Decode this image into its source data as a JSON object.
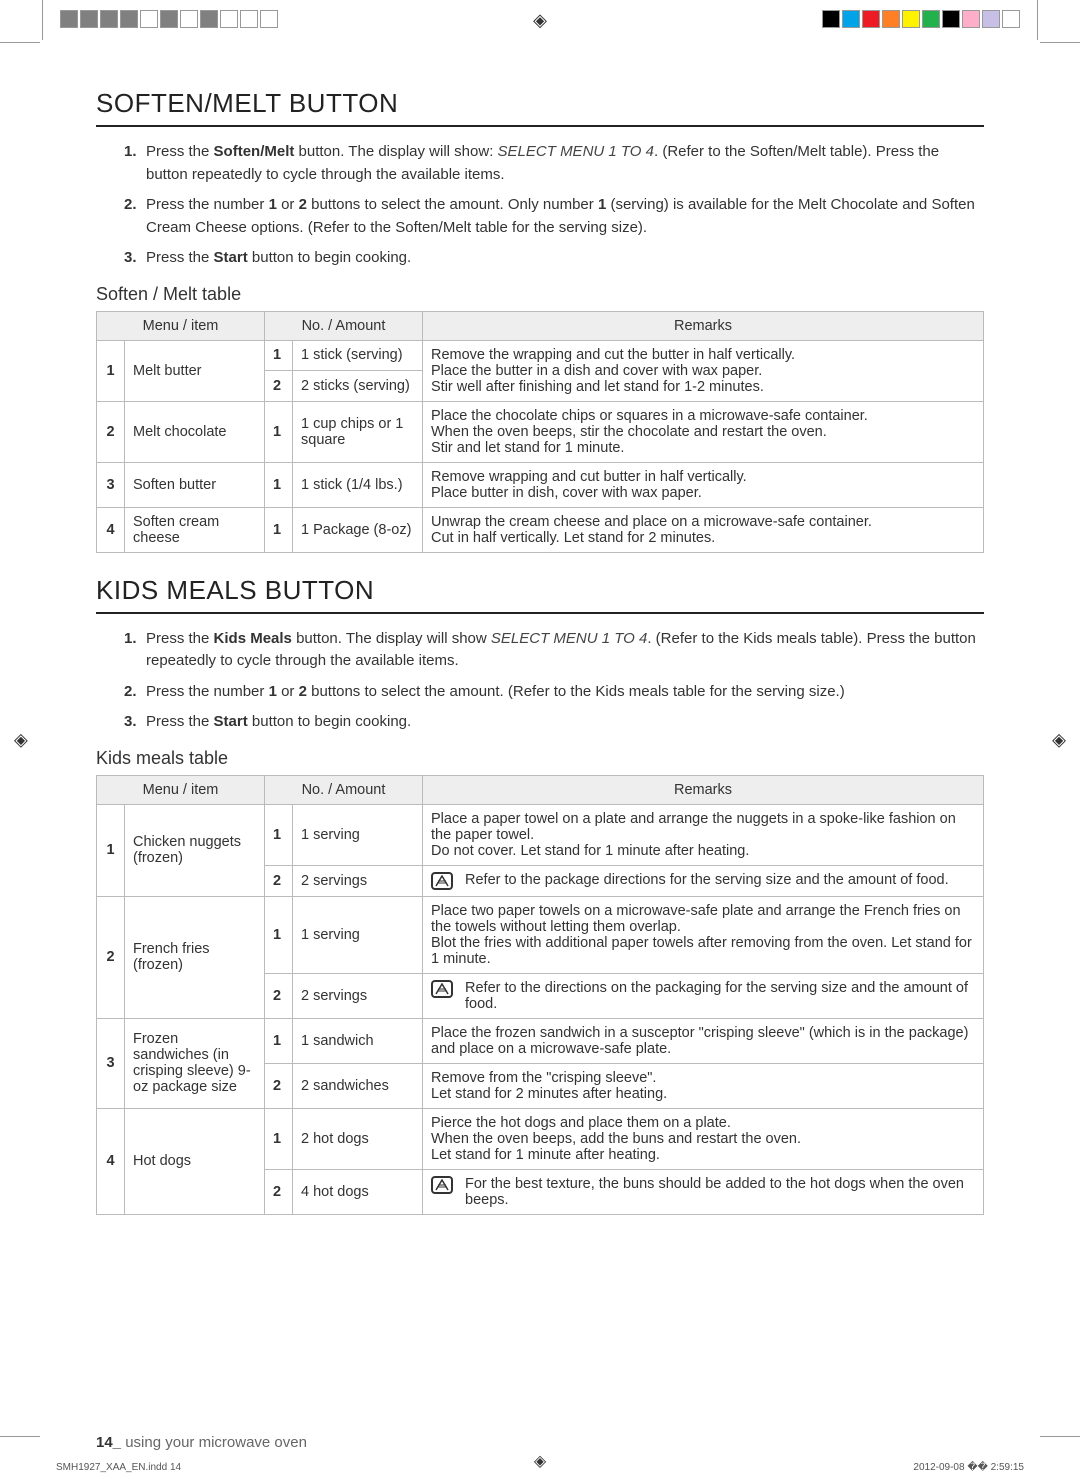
{
  "printbar": {
    "left_colors": [
      "#808080",
      "#808080",
      "#808080",
      "#808080",
      "#ffffff",
      "#808080",
      "#ffffff",
      "#808080",
      "#ffffff",
      "#ffffff",
      "#ffffff"
    ],
    "right_colors": [
      "#000000",
      "#00a2e8",
      "#ed1c24",
      "#ff7f27",
      "#fff200",
      "#22b14c",
      "#000000",
      "#ffaec9",
      "#c8bfe7",
      "#ffffff"
    ]
  },
  "section1": {
    "title": "SOFTEN/MELT BUTTON",
    "steps": [
      {
        "n": "1.",
        "pre": "Press the ",
        "b": "Soften/Melt",
        "post": " button. The display will show: ",
        "i": "SELECT MENU 1 TO 4",
        "tail": ". (Refer to the Soften/Melt table). Press the button repeatedly to cycle through the available items."
      },
      {
        "n": "2.",
        "text": "Press the number 1 or 2 buttons to select the amount. Only number 1 (serving) is available for the Melt Chocolate and Soften Cream Cheese options. (Refer to the Soften/Melt table for the serving size)."
      },
      {
        "n": "3.",
        "pre": "Press the ",
        "b": "Start",
        "post": " button to begin cooking."
      }
    ],
    "table_title": "Soften / Melt table",
    "headers": {
      "menu": "Menu / item",
      "amount": "No. / Amount",
      "remarks": "Remarks"
    },
    "rows": [
      {
        "idx": "1",
        "item": "Melt butter",
        "subs": [
          {
            "no": "1",
            "amt": "1 stick (serving)"
          },
          {
            "no": "2",
            "amt": "2 sticks (serving)"
          }
        ],
        "remarks": "Remove the wrapping and cut the butter in half vertically.\nPlace the butter in a dish and cover with wax paper.\nStir well after finishing and let stand for 1-2 minutes."
      },
      {
        "idx": "2",
        "item": "Melt chocolate",
        "subs": [
          {
            "no": "1",
            "amt": "1 cup chips or 1 square"
          }
        ],
        "remarks": "Place the chocolate chips or squares in a microwave-safe container.\nWhen the oven beeps, stir the chocolate and restart the oven.\nStir and let stand for 1 minute."
      },
      {
        "idx": "3",
        "item": "Soften butter",
        "subs": [
          {
            "no": "1",
            "amt": "1 stick (1/4 lbs.)"
          }
        ],
        "remarks": "Remove wrapping and cut butter in half vertically.\nPlace butter in dish, cover with wax paper."
      },
      {
        "idx": "4",
        "item": "Soften cream cheese",
        "subs": [
          {
            "no": "1",
            "amt": "1 Package (8-oz)"
          }
        ],
        "remarks": "Unwrap the cream cheese and place on a microwave-safe container.\nCut in half vertically. Let stand for 2 minutes."
      }
    ]
  },
  "section2": {
    "title": "KIDS MEALS BUTTON",
    "steps": [
      {
        "n": "1.",
        "pre": "Press the ",
        "b": "Kids Meals",
        "post": " button. The display will show ",
        "i": "SELECT MENU 1 TO 4",
        "tail": ". (Refer to the Kids meals table). Press the button repeatedly to cycle through the available items."
      },
      {
        "n": "2.",
        "text": "Press the number 1 or 2 buttons to select the amount. (Refer to the Kids meals table for the serving size.)"
      },
      {
        "n": "3.",
        "pre": "Press the ",
        "b": "Start",
        "post": " button to begin cooking."
      }
    ],
    "table_title": "Kids meals table",
    "headers": {
      "menu": "Menu / item",
      "amount": "No. / Amount",
      "remarks": "Remarks"
    },
    "rows": [
      {
        "idx": "1",
        "item": "Chicken nuggets (frozen)",
        "sub1": {
          "no": "1",
          "amt": "1 serving",
          "rem": "Place a paper towel on a plate and arrange the nuggets in a spoke-like fashion on the paper towel.\nDo not cover. Let stand for 1 minute after heating."
        },
        "sub2": {
          "no": "2",
          "amt": "2 servings",
          "note": "Refer to the package directions for the serving size and the amount of food."
        }
      },
      {
        "idx": "2",
        "item": "French fries (frozen)",
        "sub1": {
          "no": "1",
          "amt": "1 serving",
          "rem": "Place two paper towels on a microwave-safe plate and arrange the French fries on the towels without letting them overlap.\nBlot the fries with additional paper towels after removing from the oven. Let stand for 1 minute."
        },
        "sub2": {
          "no": "2",
          "amt": "2 servings",
          "note": "Refer to the directions on the packaging for the serving size and the amount of food."
        }
      },
      {
        "idx": "3",
        "item": "Frozen sandwiches (in crisping sleeve) 9-oz package size",
        "sub1": {
          "no": "1",
          "amt": "1 sandwich",
          "rem": "Place the frozen sandwich in a susceptor \"crisping sleeve\" (which is in the package) and place on a microwave-safe plate."
        },
        "sub2": {
          "no": "2",
          "amt": "2 sandwiches",
          "rem2": "Remove from the \"crisping sleeve\".\nLet stand for 2 minutes after heating."
        }
      },
      {
        "idx": "4",
        "item": "Hot dogs",
        "sub1": {
          "no": "1",
          "amt": "2 hot dogs",
          "rem": "Pierce the hot dogs and place them on a plate.\nWhen the oven beeps, add the buns and restart the oven.\nLet stand for 1 minute after heating."
        },
        "sub2": {
          "no": "2",
          "amt": "4 hot dogs",
          "note": "For the best texture, the buns should be added to the hot dogs when the oven beeps."
        }
      }
    ]
  },
  "footer": {
    "page": "14_",
    "label": " using your microwave oven",
    "indd": "SMH1927_XAA_EN.indd   14",
    "ts": "2012-09-08   �� 2:59:15"
  }
}
